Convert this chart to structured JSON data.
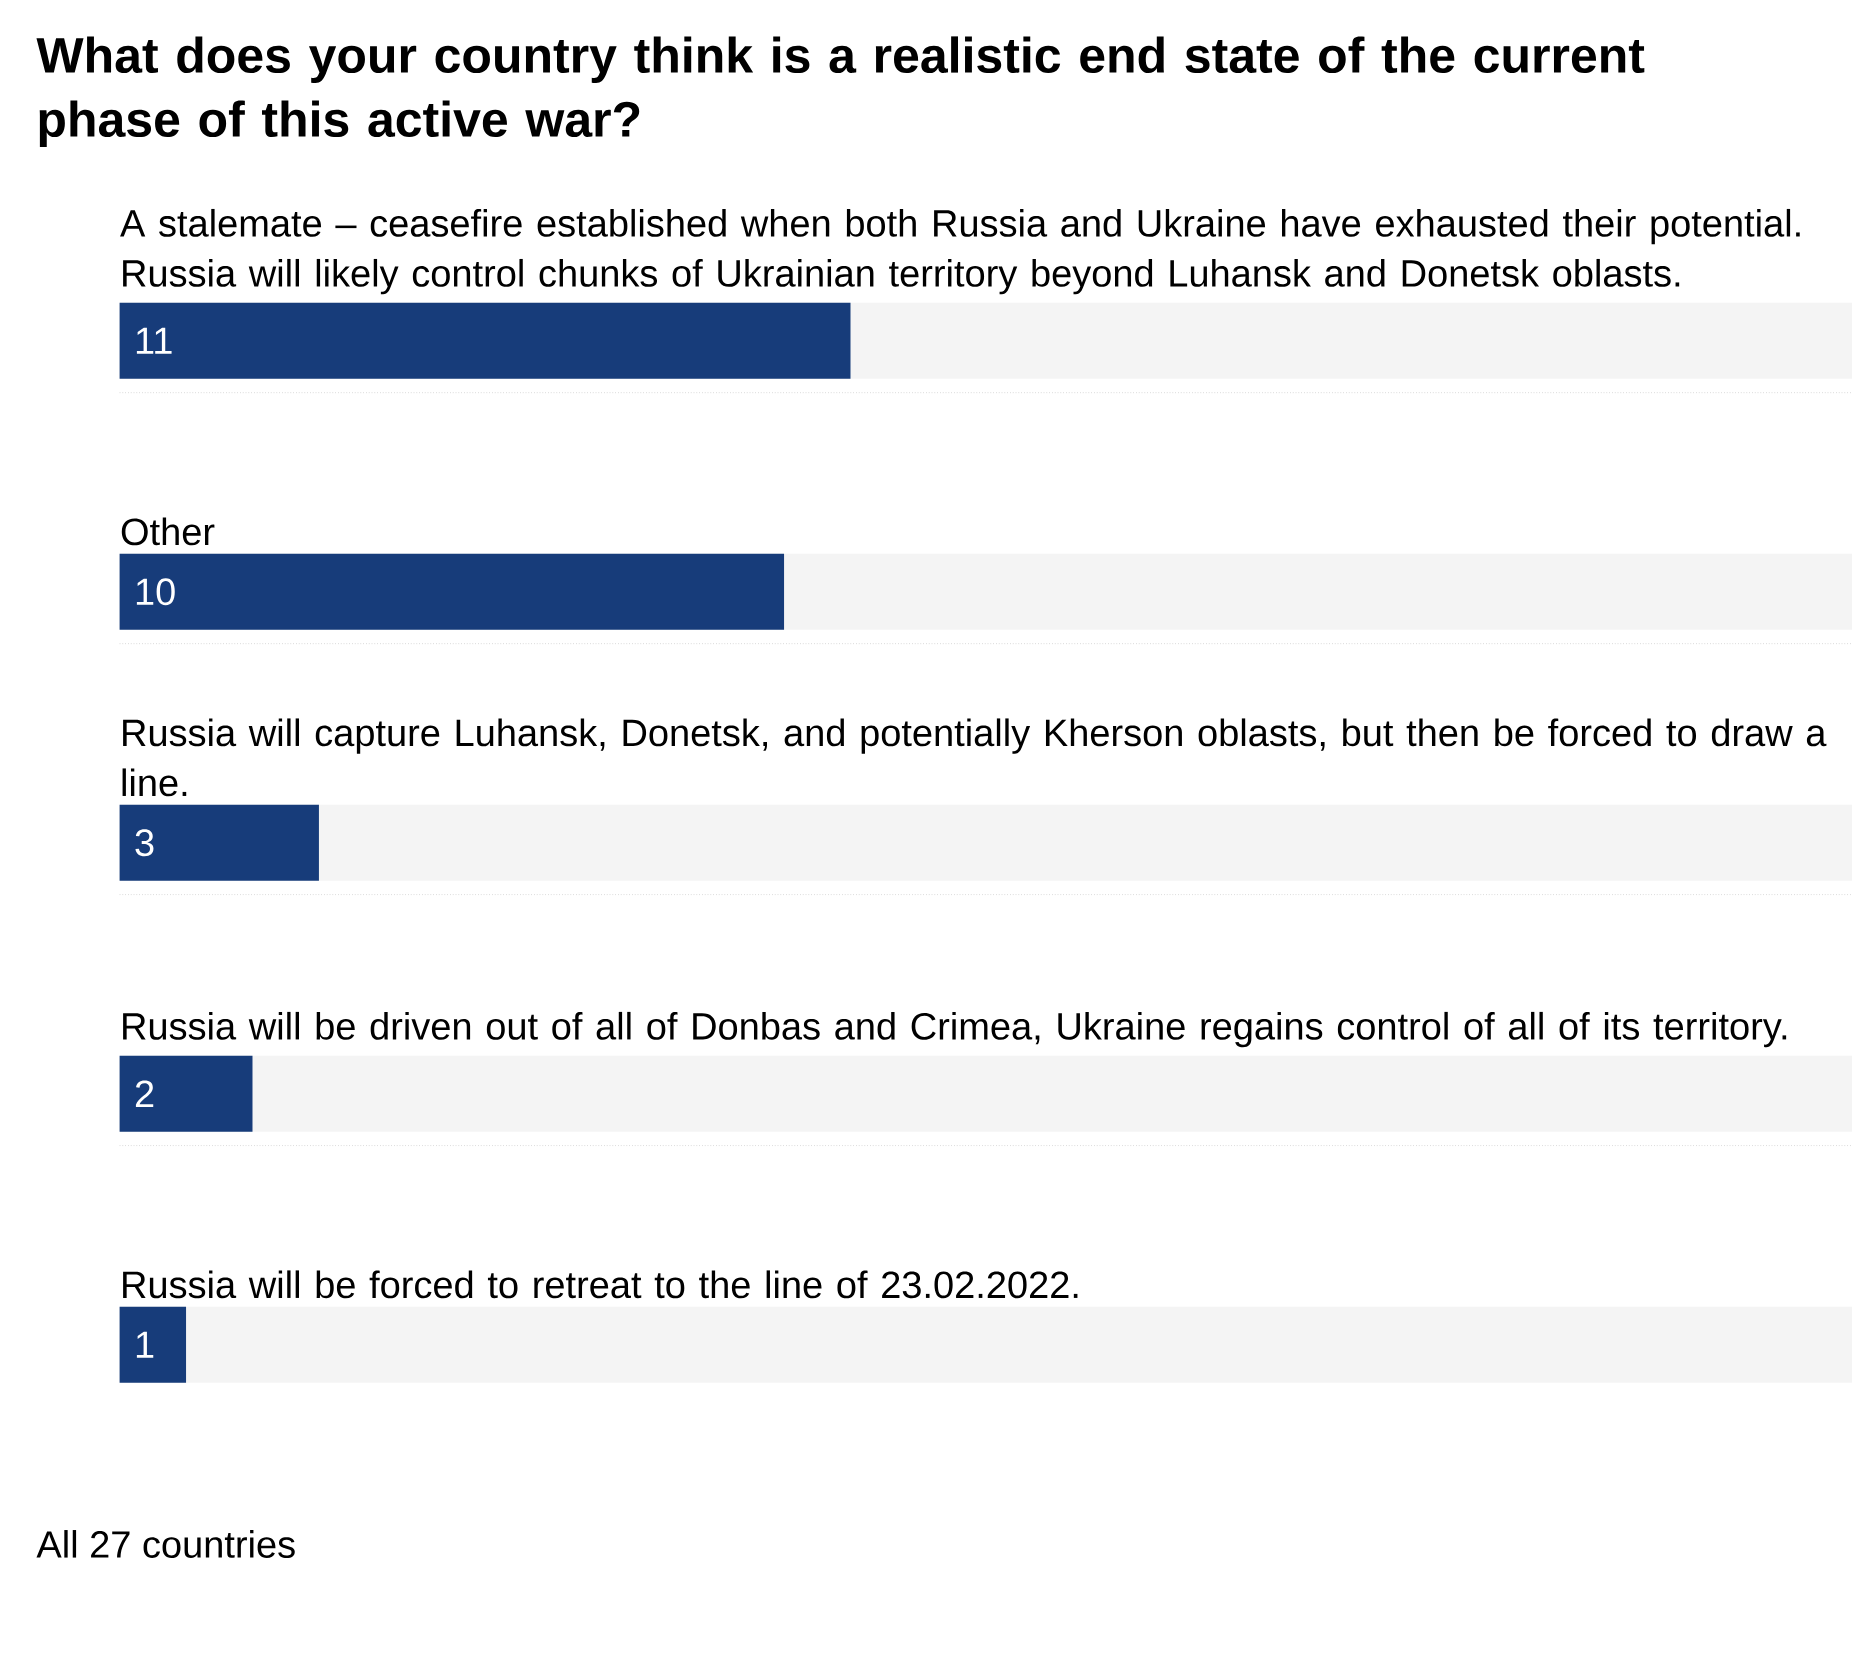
{
  "chart_data": {
    "type": "bar",
    "orientation": "horizontal",
    "title": "What does your country think is a realistic end state of the current phase of this active war?",
    "categories": [
      "A stalemate – ceasefire established when both Russia and Ukraine have exhausted their potential. Russia will likely control chunks of Ukrainian territory beyond Luhansk and Donetsk oblasts.",
      "Other",
      "Russia will capture Luhansk, Donetsk, and potentially Kherson oblasts, but then be forced to draw a line.",
      "Russia will be driven out of all of Donbas and Crimea, Ukraine regains control of all of its territory.",
      "Russia will be forced to retreat to the line of 23.02.2022."
    ],
    "values": [
      11,
      10,
      3,
      2,
      1
    ],
    "color": "#173c7a",
    "xlim": [
      0,
      27
    ],
    "data_labels": true,
    "annotations": [
      "All 27 countries"
    ]
  }
}
